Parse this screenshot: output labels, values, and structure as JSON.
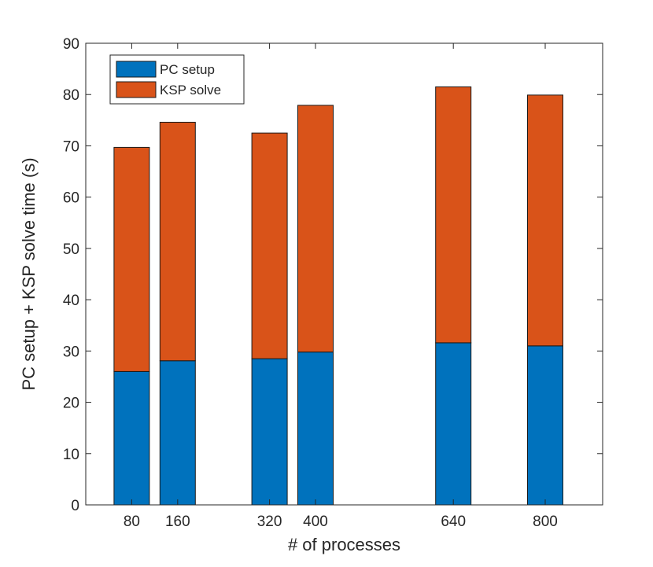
{
  "chart_data": {
    "type": "bar",
    "stacked": true,
    "x": [
      80,
      160,
      320,
      400,
      640,
      800
    ],
    "categories": [
      "80",
      "160",
      "320",
      "400",
      "640",
      "800"
    ],
    "series": [
      {
        "name": "PC setup",
        "color": "#0072BD",
        "values": [
          26.0,
          28.1,
          28.5,
          29.8,
          31.6,
          31.0
        ]
      },
      {
        "name": "KSP solve",
        "color": "#D95319",
        "values": [
          43.7,
          46.5,
          44.0,
          48.1,
          49.9,
          48.9
        ]
      }
    ],
    "totals": [
      69.7,
      74.6,
      72.5,
      77.9,
      81.5,
      79.9
    ],
    "xlabel": "# of processes",
    "ylabel": "PC setup + KSP solve time (s)",
    "ylim": [
      0,
      90
    ],
    "yticks": [
      0,
      10,
      20,
      30,
      40,
      50,
      60,
      70,
      80,
      90
    ],
    "legend_position": "top-left",
    "grid": false
  }
}
